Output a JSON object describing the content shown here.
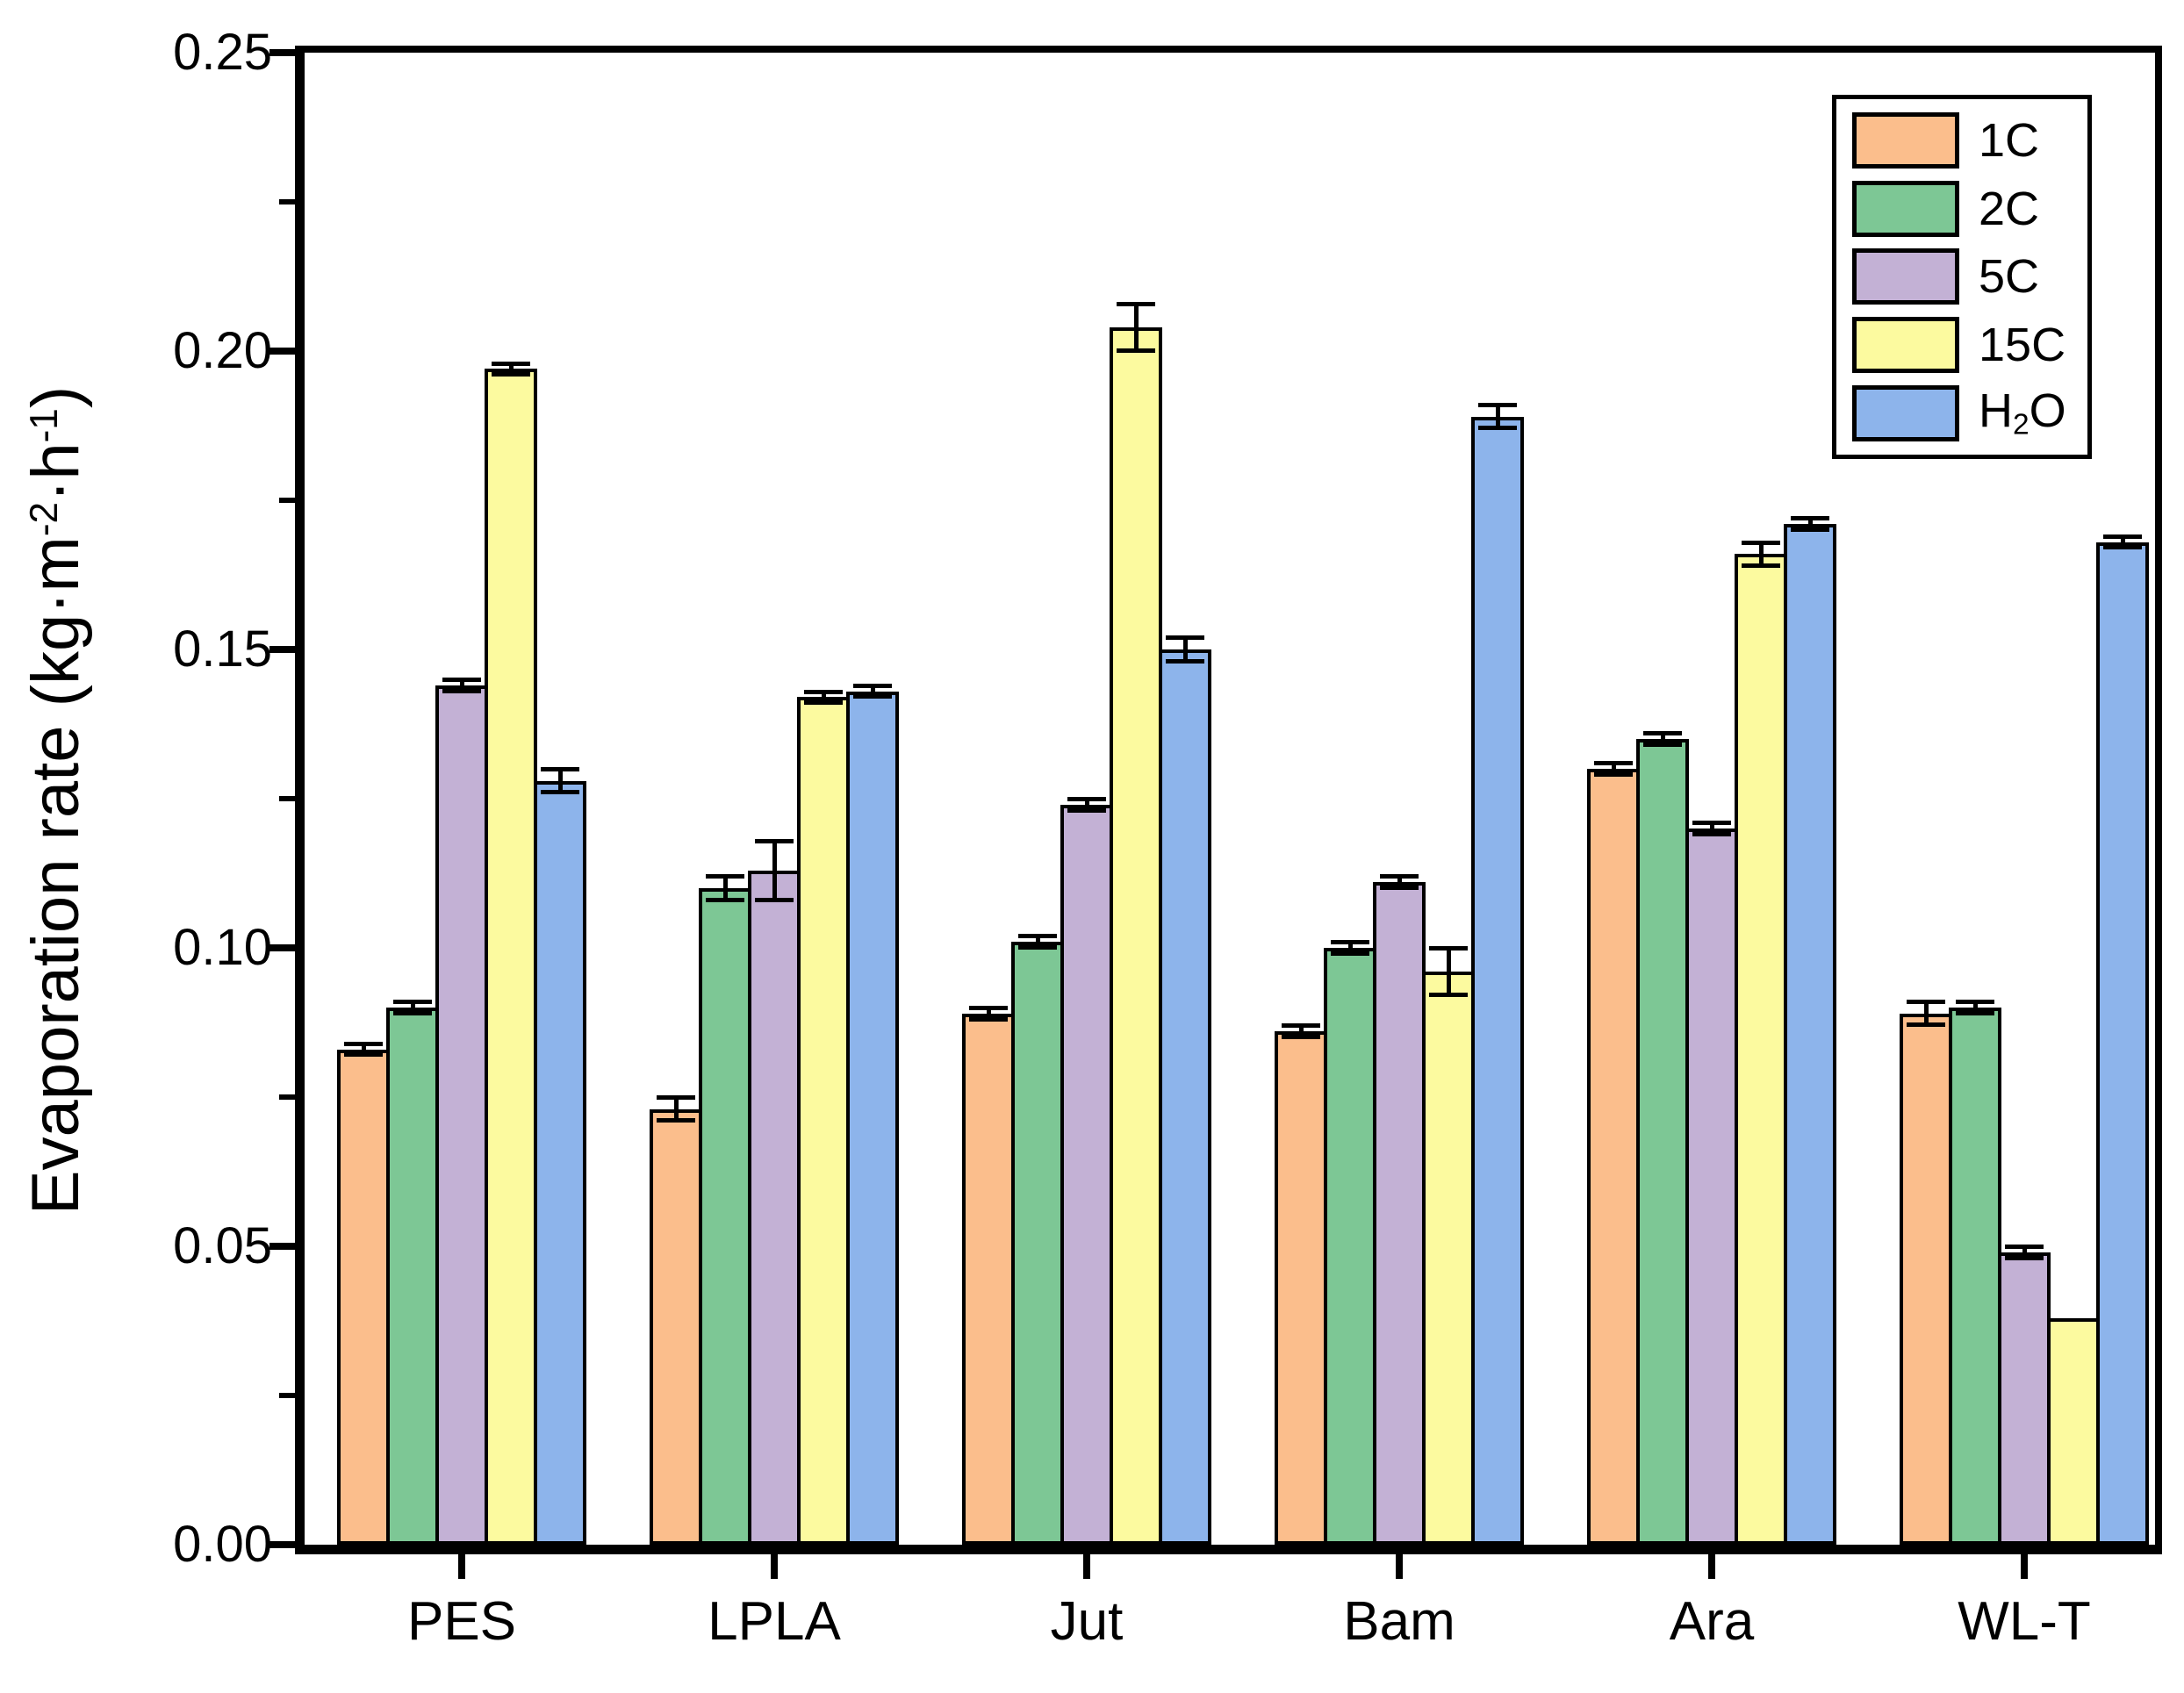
{
  "figure": {
    "background": "#ffffff",
    "axis_color": "#000000"
  },
  "chart_data": {
    "type": "bar",
    "title": "",
    "xlabel": "",
    "ylabel": "Evaporation rate (kg·m⁻²·h⁻¹)",
    "ylabel_parts": {
      "pre": "Evaporation rate (kg·m",
      "sup1": "-2",
      "mid": "·h",
      "sup2": "-1",
      "suffix": ")"
    },
    "categories": [
      "PES",
      "LPLA",
      "Jut",
      "Bam",
      "Ara",
      "WL-T"
    ],
    "series": [
      {
        "name": "1C",
        "color": "#FBBE8C",
        "values": [
          0.083,
          0.073,
          0.089,
          0.086,
          0.13,
          0.089
        ],
        "errors": [
          0.001,
          0.002,
          0.001,
          0.001,
          0.001,
          0.002
        ]
      },
      {
        "name": "2C",
        "color": "#7DC795",
        "values": [
          0.09,
          0.11,
          0.101,
          0.1,
          0.135,
          0.09
        ],
        "errors": [
          0.001,
          0.002,
          0.001,
          0.001,
          0.001,
          0.001
        ]
      },
      {
        "name": "5C",
        "color": "#C3B1D5",
        "values": [
          0.144,
          0.113,
          0.124,
          0.111,
          0.12,
          0.049
        ],
        "errors": [
          0.001,
          0.005,
          0.001,
          0.001,
          0.001,
          0.001
        ]
      },
      {
        "name": "15C",
        "color": "#FCFA9F",
        "values": [
          0.197,
          0.142,
          0.204,
          0.096,
          0.166,
          0.038
        ],
        "errors": [
          0.001,
          0.001,
          0.004,
          0.004,
          0.002,
          0
        ]
      },
      {
        "name": "H2O",
        "label_parts": {
          "pre": "H",
          "sub": "2",
          "post": "O"
        },
        "color": "#8DB4EB",
        "values": [
          0.128,
          0.143,
          0.15,
          0.189,
          0.171,
          0.168
        ],
        "errors": [
          0.002,
          0.001,
          0.002,
          0.002,
          0.001,
          0.001
        ]
      }
    ],
    "y_ticks": [
      "0.00",
      "0.05",
      "0.10",
      "0.15",
      "0.20",
      "0.25"
    ],
    "ylim": [
      0,
      0.25
    ],
    "y_tick_step": 0.05,
    "minor_tick_step": 0.025,
    "grid": false,
    "error_bars": true,
    "legend_position": "top-right"
  }
}
